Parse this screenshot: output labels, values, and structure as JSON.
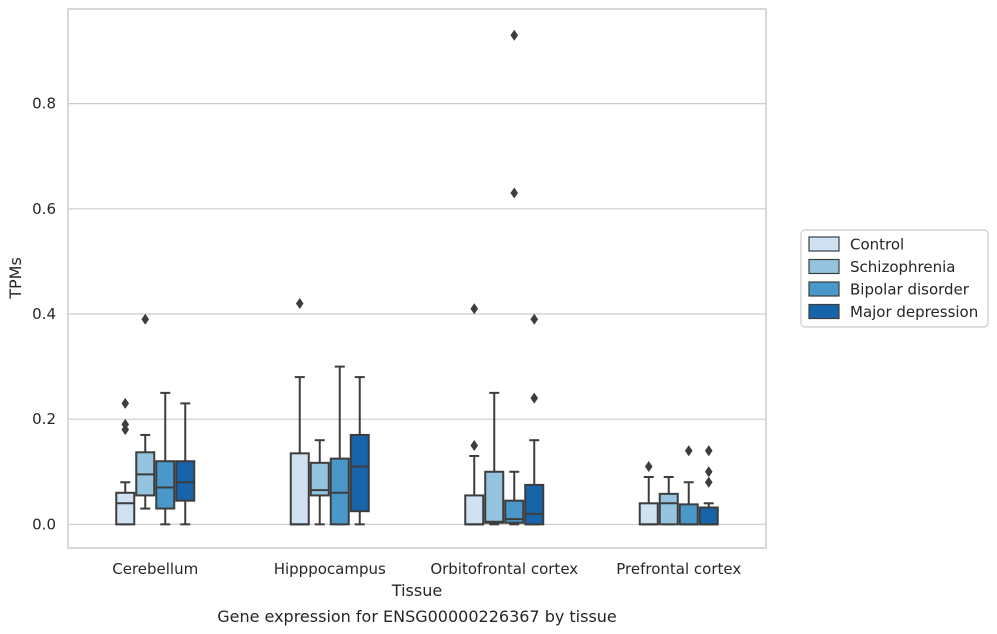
{
  "chart_data": {
    "type": "box",
    "xlabel": "Tissue",
    "ylabel": "TPMs",
    "caption": "Gene expression for ENSG00000226367 by tissue",
    "ylim": [
      -0.045,
      0.98
    ],
    "yticks": [
      "0.0",
      "0.2",
      "0.4",
      "0.6",
      "0.8"
    ],
    "ytick_values": [
      0.0,
      0.2,
      0.4,
      0.6,
      0.8
    ],
    "grid": "horizontal",
    "legend_position": "right",
    "categories": [
      "Cerebellum",
      "Hipppocampus",
      "Orbitofrontal cortex",
      "Prefrontal cortex"
    ],
    "series": [
      {
        "name": "Control",
        "color": "#d0e1f2",
        "boxes": [
          {
            "whisker_low": 0.0,
            "q1": 0.0,
            "median": 0.04,
            "q3": 0.06,
            "whisker_high": 0.08,
            "outliers": [
              0.18,
              0.19,
              0.23
            ]
          },
          {
            "whisker_low": 0.0,
            "q1": 0.0,
            "median": 0.0,
            "q3": 0.135,
            "whisker_high": 0.28,
            "outliers": [
              0.42
            ]
          },
          {
            "whisker_low": 0.0,
            "q1": 0.0,
            "median": 0.0,
            "q3": 0.055,
            "whisker_high": 0.13,
            "outliers": [
              0.15,
              0.41
            ]
          },
          {
            "whisker_low": 0.0,
            "q1": 0.0,
            "median": 0.0,
            "q3": 0.04,
            "whisker_high": 0.09,
            "outliers": [
              0.11
            ]
          }
        ]
      },
      {
        "name": "Schizophrenia",
        "color": "#94c4df",
        "boxes": [
          {
            "whisker_low": 0.03,
            "q1": 0.055,
            "median": 0.095,
            "q3": 0.137,
            "whisker_high": 0.17,
            "outliers": [
              0.39
            ]
          },
          {
            "whisker_low": 0.0,
            "q1": 0.055,
            "median": 0.065,
            "q3": 0.117,
            "whisker_high": 0.16,
            "outliers": []
          },
          {
            "whisker_low": 0.0,
            "q1": 0.003,
            "median": 0.005,
            "q3": 0.1,
            "whisker_high": 0.25,
            "outliers": []
          },
          {
            "whisker_low": 0.0,
            "q1": 0.0,
            "median": 0.04,
            "q3": 0.058,
            "whisker_high": 0.09,
            "outliers": []
          }
        ]
      },
      {
        "name": "Bipolar disorder",
        "color": "#4a98c9",
        "boxes": [
          {
            "whisker_low": 0.0,
            "q1": 0.03,
            "median": 0.07,
            "q3": 0.12,
            "whisker_high": 0.25,
            "outliers": []
          },
          {
            "whisker_low": 0.0,
            "q1": 0.0,
            "median": 0.06,
            "q3": 0.125,
            "whisker_high": 0.3,
            "outliers": []
          },
          {
            "whisker_low": 0.0,
            "q1": 0.003,
            "median": 0.01,
            "q3": 0.045,
            "whisker_high": 0.1,
            "outliers": [
              0.63,
              0.93
            ]
          },
          {
            "whisker_low": 0.0,
            "q1": 0.0,
            "median": 0.0,
            "q3": 0.038,
            "whisker_high": 0.08,
            "outliers": [
              0.14
            ]
          }
        ]
      },
      {
        "name": "Major depression",
        "color": "#1764ab",
        "boxes": [
          {
            "whisker_low": 0.0,
            "q1": 0.045,
            "median": 0.08,
            "q3": 0.12,
            "whisker_high": 0.23,
            "outliers": []
          },
          {
            "whisker_low": 0.0,
            "q1": 0.025,
            "median": 0.11,
            "q3": 0.17,
            "whisker_high": 0.28,
            "outliers": []
          },
          {
            "whisker_low": 0.0,
            "q1": 0.0,
            "median": 0.02,
            "q3": 0.075,
            "whisker_high": 0.16,
            "outliers": [
              0.24,
              0.39
            ]
          },
          {
            "whisker_low": 0.0,
            "q1": 0.0,
            "median": 0.0,
            "q3": 0.032,
            "whisker_high": 0.04,
            "outliers": [
              0.08,
              0.1,
              0.14
            ]
          }
        ]
      }
    ]
  }
}
